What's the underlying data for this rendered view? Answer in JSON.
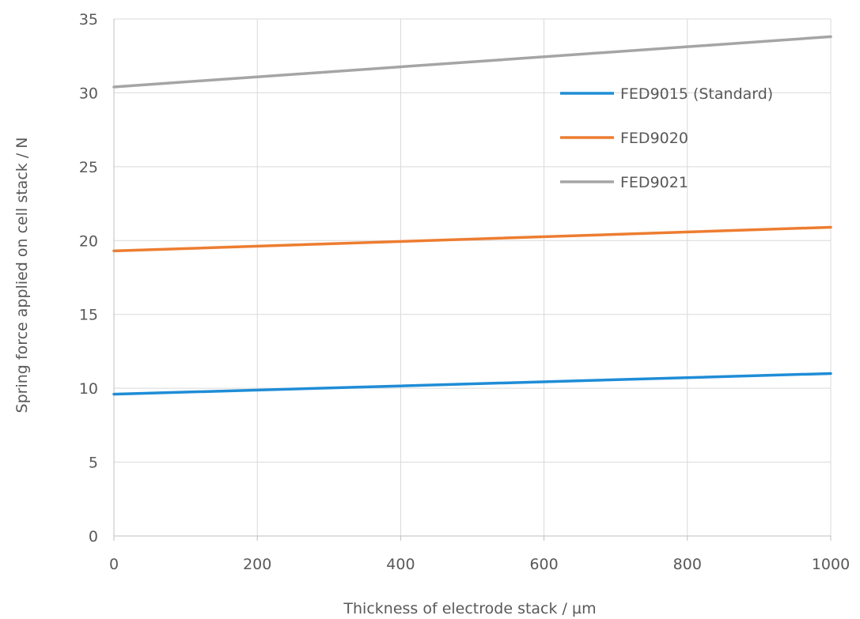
{
  "chart_data": {
    "type": "line",
    "xlabel": "Thickness of electrode stack / µm",
    "ylabel": "Spring force applied on cell stack / N",
    "xlim": [
      0,
      1000
    ],
    "ylim": [
      0,
      35
    ],
    "x_ticks": [
      0,
      200,
      400,
      600,
      800,
      1000
    ],
    "y_ticks": [
      0,
      5,
      10,
      15,
      20,
      25,
      30,
      35
    ],
    "grid": true,
    "legend_position": "top-right",
    "series": [
      {
        "name": "FED9015 (Standard)",
        "color": "#1f8dd6",
        "x": [
          0,
          1000
        ],
        "y": [
          9.6,
          11.0
        ]
      },
      {
        "name": "FED9020",
        "color": "#ed7d31",
        "x": [
          0,
          1000
        ],
        "y": [
          19.3,
          20.9
        ]
      },
      {
        "name": "FED9021",
        "color": "#a5a5a5",
        "x": [
          0,
          1000
        ],
        "y": [
          30.4,
          33.8
        ]
      }
    ]
  }
}
